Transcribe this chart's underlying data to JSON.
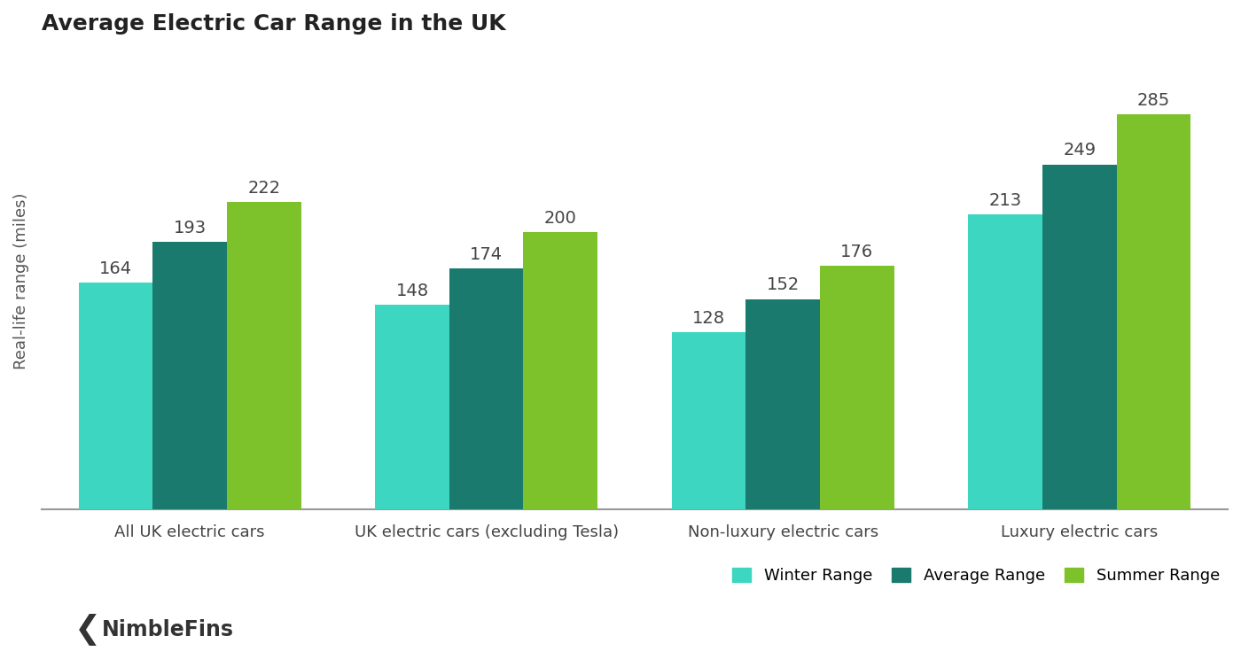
{
  "title": "Average Electric Car Range in the UK",
  "ylabel": "Real-life range (miles)",
  "categories": [
    "All UK electric cars",
    "UK electric cars (excluding Tesla)",
    "Non-luxury electric cars",
    "Luxury electric cars"
  ],
  "series": {
    "Winter Range": [
      164,
      148,
      128,
      213
    ],
    "Average Range": [
      193,
      174,
      152,
      249
    ],
    "Summer Range": [
      222,
      200,
      176,
      285
    ]
  },
  "colors": {
    "Winter Range": "#3DD6C0",
    "Average Range": "#1A7A6E",
    "Summer Range": "#7DC22A"
  },
  "title_fontsize": 18,
  "label_fontsize": 13,
  "tick_fontsize": 13,
  "annotation_fontsize": 14,
  "legend_fontsize": 13,
  "bar_width": 0.25,
  "ylim": [
    0,
    330
  ],
  "background_color": "#ffffff",
  "annotation_color": "#444444",
  "logo_text": "NimbleFins",
  "logo_color": "#333333"
}
